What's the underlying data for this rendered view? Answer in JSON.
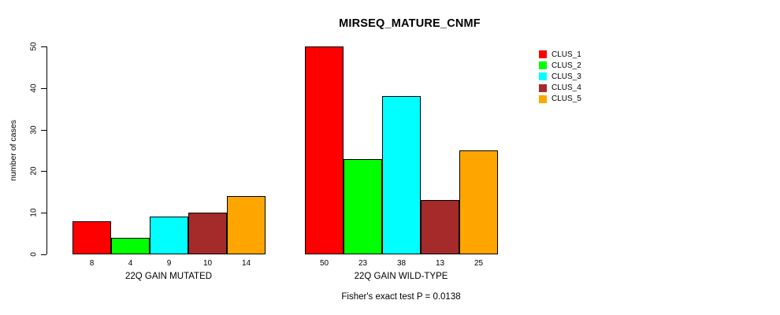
{
  "chart_data": {
    "type": "bar",
    "title": "MIRSEQ_MATURE_CNMF",
    "ylabel": "number of cases",
    "ylim": [
      0,
      50
    ],
    "yticks": [
      0,
      10,
      20,
      30,
      40,
      50
    ],
    "grid": false,
    "legend_position": "top-right",
    "series": [
      {
        "name": "CLUS_1",
        "color": "#FF0000"
      },
      {
        "name": "CLUS_2",
        "color": "#00FF00"
      },
      {
        "name": "CLUS_3",
        "color": "#00FFFF"
      },
      {
        "name": "CLUS_4",
        "color": "#A52A2A"
      },
      {
        "name": "CLUS_5",
        "color": "#FFA500"
      }
    ],
    "groups": [
      {
        "label": "22Q GAIN MUTATED",
        "values": [
          8,
          4,
          9,
          10,
          14
        ]
      },
      {
        "label": "22Q GAIN WILD-TYPE",
        "values": [
          50,
          23,
          38,
          13,
          25
        ]
      }
    ],
    "footnote": "Fisher's exact test P = 0.0138"
  }
}
